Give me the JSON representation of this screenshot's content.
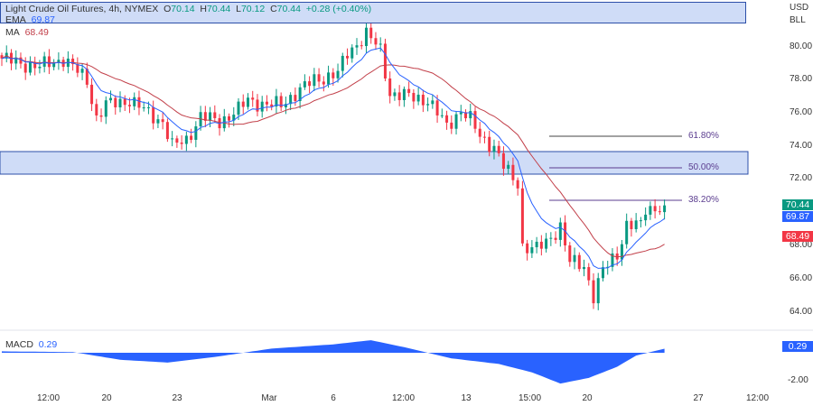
{
  "legend": {
    "symbol": "Light Crude Oil Futures, 4h, NYMEX",
    "o_label": "O",
    "o": "70.14",
    "h_label": "H",
    "h": "70.44",
    "l_label": "L",
    "l": "70.12",
    "c_label": "C",
    "c": "70.44",
    "change": "+0.28 (+0.40%)",
    "ema_label": "EMA",
    "ema": "69.87",
    "ma_label": "MA",
    "ma": "68.49",
    "macd_label": "MACD",
    "macd": "0.29"
  },
  "axis": {
    "currency": "USD",
    "unit": "BLL",
    "price_ticks": [
      "80.00",
      "78.00",
      "76.00",
      "74.00",
      "72.00",
      "68.00",
      "66.00",
      "64.00"
    ],
    "macd_tick": "-2.00",
    "time_ticks": [
      "12:00",
      "20",
      "23",
      "Mar",
      "6",
      "12:00",
      "13",
      "15:00",
      "20",
      "27",
      "12:00"
    ]
  },
  "badges": {
    "last": "70.44",
    "ema": "69.87",
    "ma": "68.49",
    "macd": "0.29"
  },
  "fib": {
    "f618": "61.80%",
    "f50": "50.00%",
    "f382": "38.20%"
  },
  "colors": {
    "up": "#089981",
    "down": "#f23645",
    "ema": "#2962ff",
    "ma": "#c2404a",
    "zone": "#cfdcf7"
  },
  "chart_data": {
    "type": "candlestick",
    "price_range": [
      63,
      81.5
    ],
    "waypoints_index": [
      0,
      4,
      8,
      13,
      18,
      20,
      22,
      27,
      31,
      34,
      36,
      39,
      42,
      46,
      50,
      52,
      56,
      59,
      61,
      66,
      71,
      73,
      75,
      77,
      80,
      82,
      86,
      90,
      94,
      97,
      99,
      101,
      104,
      106,
      108,
      109,
      110,
      113,
      115,
      118,
      120,
      123,
      125,
      127,
      130,
      132,
      135,
      136,
      140
    ],
    "waypoints_close": [
      79.3,
      79.0,
      78.8,
      79.3,
      78.0,
      75.7,
      76.5,
      76.8,
      76.0,
      75.5,
      74.0,
      74.4,
      75.8,
      75.5,
      76.2,
      76.8,
      76.5,
      76.5,
      77.0,
      78.0,
      78.4,
      79.6,
      80.2,
      80.8,
      79.8,
      77.2,
      77.0,
      76.8,
      75.2,
      76.2,
      75.6,
      74.6,
      74.0,
      72.8,
      72.0,
      71.8,
      68.0,
      67.8,
      68.2,
      69.2,
      67.0,
      66.8,
      65.0,
      66.5,
      67.5,
      69.3,
      69.2,
      70.2,
      70.44
    ],
    "macd_index": [
      0,
      15,
      25,
      35,
      45,
      57,
      70,
      78,
      85,
      95,
      105,
      112,
      118,
      124,
      130,
      134,
      140
    ],
    "macd_values": [
      0.1,
      0.05,
      -0.5,
      -0.7,
      -0.3,
      0.3,
      0.6,
      0.9,
      0.4,
      -0.4,
      -0.8,
      -1.4,
      -2.2,
      -1.8,
      -1.0,
      -0.2,
      0.29
    ],
    "macd_range": [
      -2.6,
      1.4
    ]
  }
}
